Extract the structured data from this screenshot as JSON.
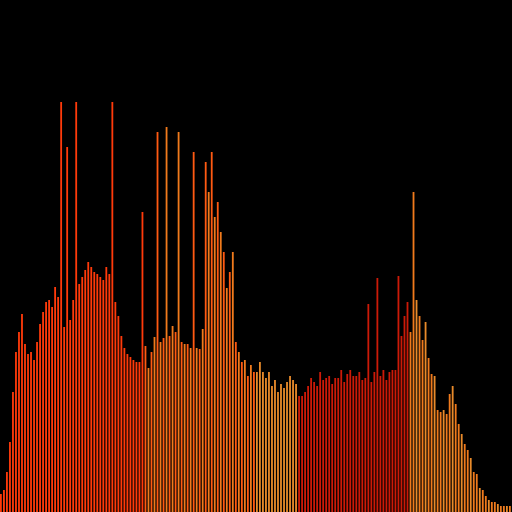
{
  "chart_data": {
    "type": "bar",
    "title": "",
    "xlabel": "",
    "ylabel": "",
    "grid": false,
    "legend": "none",
    "ylim": [
      0,
      512
    ],
    "background": "#000000",
    "colors": {
      "red_orange": "#ff3a0a",
      "orange_red": "#ff5a12",
      "dark_red": "#cc1a08",
      "orange": "#f07a1c",
      "amber": "#e88a2a"
    },
    "values": [
      18,
      22,
      40,
      70,
      120,
      160,
      180,
      198,
      168,
      158,
      160,
      152,
      170,
      188,
      200,
      210,
      212,
      205,
      225,
      215,
      410,
      185,
      365,
      192,
      212,
      410,
      228,
      235,
      242,
      250,
      245,
      240,
      238,
      235,
      232,
      245,
      238,
      410,
      210,
      196,
      176,
      164,
      158,
      155,
      152,
      150,
      150,
      300,
      166,
      144,
      160,
      175,
      380,
      170,
      174,
      385,
      176,
      186,
      180,
      380,
      170,
      168,
      168,
      164,
      360,
      164,
      163,
      183,
      350,
      320,
      360,
      295,
      310,
      280,
      260,
      224,
      240,
      260,
      170,
      160,
      150,
      152,
      136,
      147,
      140,
      140,
      150,
      140,
      134,
      140,
      126,
      132,
      120,
      128,
      124,
      130,
      136,
      132,
      128,
      116,
      116,
      120,
      126,
      134,
      130,
      126,
      140,
      132,
      134,
      136,
      128,
      134,
      134,
      142,
      130,
      138,
      142,
      136,
      136,
      140,
      132,
      134,
      208,
      130,
      140,
      234,
      136,
      142,
      132,
      140,
      142,
      142,
      236,
      176,
      196,
      210,
      180,
      320,
      212,
      196,
      172,
      190,
      154,
      138,
      136,
      102,
      100,
      102,
      98,
      118,
      126,
      108,
      88,
      78,
      68,
      62,
      54,
      40,
      38,
      24,
      22,
      16,
      12,
      10,
      10,
      8,
      6,
      6,
      6,
      6
    ]
  }
}
